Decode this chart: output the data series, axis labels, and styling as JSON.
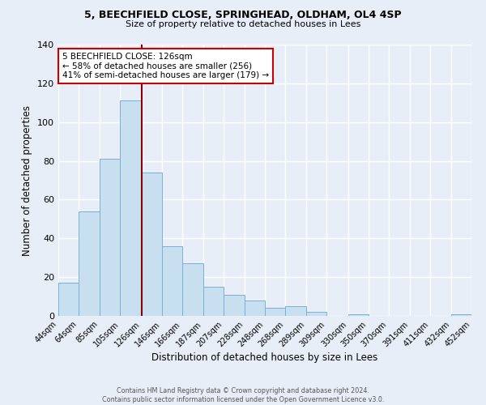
{
  "title_line1": "5, BEECHFIELD CLOSE, SPRINGHEAD, OLDHAM, OL4 4SP",
  "title_line2": "Size of property relative to detached houses in Lees",
  "xlabel": "Distribution of detached houses by size in Lees",
  "ylabel": "Number of detached properties",
  "bar_edges": [
    44,
    64,
    85,
    105,
    126,
    146,
    166,
    187,
    207,
    228,
    248,
    268,
    289,
    309,
    330,
    350,
    370,
    391,
    411,
    432,
    452
  ],
  "bar_heights": [
    17,
    54,
    81,
    111,
    74,
    36,
    27,
    15,
    11,
    8,
    4,
    5,
    2,
    0,
    1,
    0,
    0,
    0,
    0,
    1
  ],
  "bar_color": "#c8dff0",
  "bar_edgecolor": "#7bafd4",
  "property_line_x": 126,
  "property_line_color": "#8b0000",
  "annotation_line1": "5 BEECHFIELD CLOSE: 126sqm",
  "annotation_line2": "← 58% of detached houses are smaller (256)",
  "annotation_line3": "41% of semi-detached houses are larger (179) →",
  "annotation_box_color": "#ffffff",
  "annotation_box_edgecolor": "#cc0000",
  "ylim": [
    0,
    140
  ],
  "yticks": [
    0,
    20,
    40,
    60,
    80,
    100,
    120,
    140
  ],
  "tick_labels": [
    "44sqm",
    "64sqm",
    "85sqm",
    "105sqm",
    "126sqm",
    "146sqm",
    "166sqm",
    "187sqm",
    "207sqm",
    "228sqm",
    "248sqm",
    "268sqm",
    "289sqm",
    "309sqm",
    "330sqm",
    "350sqm",
    "370sqm",
    "391sqm",
    "411sqm",
    "432sqm",
    "452sqm"
  ],
  "footer_text": "Contains HM Land Registry data © Crown copyright and database right 2024.\nContains public sector information licensed under the Open Government Licence v3.0.",
  "background_color": "#e8eef8",
  "grid_color": "#ffffff"
}
